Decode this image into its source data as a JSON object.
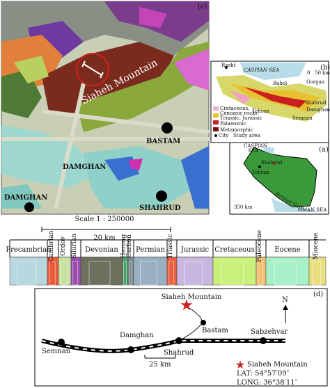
{
  "panel_c": {
    "label": "(c)",
    "mountain": "Siaheh Mountain",
    "cities": [
      "BASTAM",
      "DAMGHAN",
      "DAMGHAN",
      "SHAHRUD"
    ],
    "scale": "Scale 1 : 250000",
    "scale_bar": "20 km"
  },
  "panel_b": {
    "label": "(b)",
    "sea": "CASPIAN SEA",
    "cities": [
      "Rasht",
      "Gorgan",
      "Babol",
      "Shahrud",
      "Damghan",
      "Semnan",
      "Tehran"
    ],
    "scale": [
      "0",
      "50 km"
    ],
    "legend": [
      "Cretaceous,",
      "Cenozoic rocks",
      "Triassic, Jurassic",
      "Palaeozoic",
      "Metamorphic"
    ],
    "symbols": [
      "City",
      "Study area"
    ]
  },
  "panel_a": {
    "label": "(a)",
    "sea": [
      "CASPIAN",
      "SEA"
    ],
    "cities": [
      "Shahrud",
      "Tehran"
    ],
    "gulf": "Persian Gulf",
    "oman": "OMAN SEA",
    "scale": "350 km"
  },
  "column": {
    "units": [
      "Precambrian",
      "Cambrian",
      "Ordov",
      "Silurian",
      "Devonian",
      "Heroug",
      "Carbon",
      "Permian",
      "Triassic",
      "Jurassic",
      "Cretaceous",
      "Paleocene",
      "Eocene",
      "Miocene"
    ]
  },
  "panel_d": {
    "label": "(d)",
    "mountain": "Siaheh Mountain",
    "north": "N",
    "cities": [
      "Semnan",
      "Damghan",
      "Shahrud",
      "Bastam",
      "Sabzehvar"
    ],
    "scale": "25 km",
    "legend": "Siaheh Mountain",
    "lat": "LAT: 54°57′09″",
    "long": "LONG: 36°38′11″"
  }
}
